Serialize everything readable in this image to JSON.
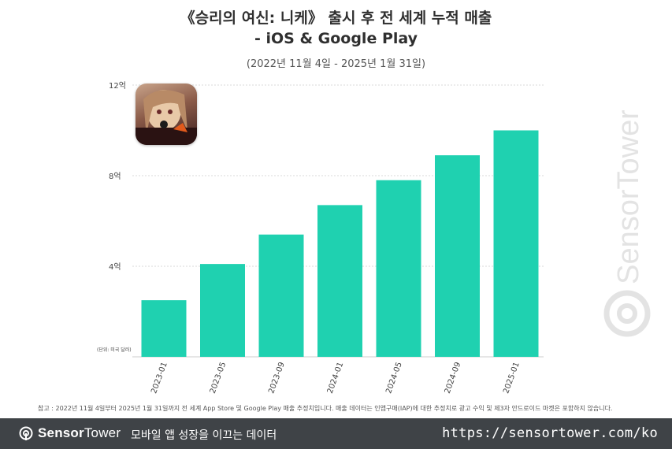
{
  "header": {
    "title_line1": "《승리의 여신: 니케》 출시 후 전 세계 누적 매출",
    "title_line2": "- iOS & Google Play",
    "date_range": "(2022년 11월 4일 - 2025년 1월 31일)"
  },
  "chart_data": {
    "type": "bar",
    "title": "《승리의 여신: 니케》 출시 후 전 세계 누적 매출 - iOS & Google Play",
    "subtitle": "(2022년 11월 4일 - 2025년 1월 31일)",
    "unit_label": "(단위: 미국 달러)",
    "categories": [
      "2023-01",
      "2023-05",
      "2023-09",
      "2024-01",
      "2024-05",
      "2024-09",
      "2025-01"
    ],
    "values": [
      2.5,
      4.1,
      5.4,
      6.7,
      7.8,
      8.9,
      10.0
    ],
    "y_ticks": [
      {
        "value": 4,
        "label": "4억"
      },
      {
        "value": 8,
        "label": "8억"
      },
      {
        "value": 12,
        "label": "12억"
      }
    ],
    "ylim": [
      0,
      12
    ],
    "grid": true,
    "bar_color": "#1fd1b0"
  },
  "footnote": "참고 : 2022년 11월 4일부터 2025년 1월 31일까지 전 세계 App Store 및 Google Play 매출 추정치입니다. 매출 데이터는 인앱구매(IAP)에 대한 추정치로 광고 수익 및 제3자 안드로이드 마켓은 포함하지 않습니다.",
  "footer": {
    "brand_part1": "Sensor",
    "brand_part2": "Tower",
    "tagline": "모바일 앱 성장을 이끄는 데이터",
    "url": "https://sensortower.com/ko"
  },
  "watermark_text": "SensorTower",
  "colors": {
    "footer_bg": "#3f4347",
    "bar": "#1fd1b0",
    "grid": "#d9d9d9"
  },
  "icons": {
    "app_icon": "nikke-app-icon",
    "footer_logo": "sensortower-logo-icon",
    "watermark_logo": "sensortower-watermark-icon"
  }
}
